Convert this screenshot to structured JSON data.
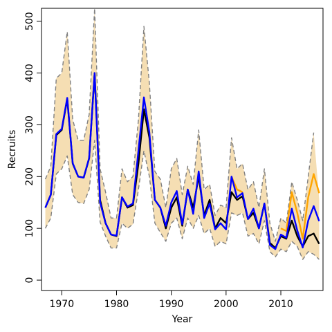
{
  "chart_data": {
    "type": "line",
    "title": "",
    "xlabel": "Year",
    "ylabel": "Recruits",
    "xlim": [
      1966.3,
      2017.7
    ],
    "ylim": [
      -20,
      525
    ],
    "xticks": [
      1970,
      1980,
      1990,
      2000,
      2010
    ],
    "yticks": [
      0,
      100,
      200,
      300,
      400,
      500
    ],
    "grid": false,
    "legend": "none",
    "x": [
      1967,
      1968,
      1969,
      1970,
      1971,
      1972,
      1973,
      1974,
      1975,
      1976,
      1977,
      1978,
      1979,
      1980,
      1981,
      1982,
      1983,
      1984,
      1985,
      1986,
      1987,
      1988,
      1989,
      1990,
      1991,
      1992,
      1993,
      1994,
      1995,
      1996,
      1997,
      1998,
      1999,
      2000,
      2001,
      2002,
      2003,
      2004,
      2005,
      2006,
      2007,
      2008,
      2009,
      2010,
      2011,
      2012,
      2013,
      2014,
      2015,
      2016,
      2017
    ],
    "band_color": "#f5deb3",
    "series": [
      {
        "role": "interval-upper",
        "color": "#808080",
        "values": [
          195,
          220,
          390,
          400,
          480,
          310,
          270,
          270,
          320,
          525,
          215,
          170,
          120,
          120,
          215,
          190,
          200,
          310,
          490,
          380,
          210,
          195,
          140,
          215,
          235,
          165,
          220,
          185,
          290,
          175,
          185,
          125,
          145,
          140,
          275,
          215,
          225,
          175,
          190,
          140,
          215,
          110,
          75,
          120,
          110,
          190,
          155,
          115,
          200,
          285,
          null
        ]
      },
      {
        "role": "interval-lower",
        "color": "#808080",
        "values": [
          100,
          120,
          205,
          215,
          240,
          165,
          150,
          148,
          175,
          270,
          112,
          85,
          62,
          62,
          110,
          100,
          108,
          175,
          250,
          200,
          110,
          92,
          75,
          110,
          120,
          80,
          120,
          100,
          125,
          90,
          100,
          65,
          75,
          70,
          130,
          125,
          130,
          85,
          90,
          70,
          115,
          55,
          45,
          60,
          55,
          75,
          65,
          40,
          55,
          50,
          40
        ]
      },
      {
        "color": "#000000",
        "values": [
          140,
          165,
          280,
          290,
          350,
          225,
          200,
          198,
          235,
          400,
          155,
          110,
          88,
          85,
          160,
          140,
          145,
          225,
          330,
          275,
          155,
          140,
          100,
          140,
          160,
          105,
          175,
          140,
          200,
          125,
          155,
          100,
          120,
          110,
          170,
          155,
          162,
          118,
          130,
          100,
          148,
          72,
          62,
          85,
          80,
          115,
          85,
          65,
          85,
          90,
          70
        ]
      },
      {
        "color": "#ffa500",
        "values": [
          null,
          null,
          null,
          null,
          null,
          null,
          null,
          null,
          null,
          null,
          null,
          null,
          null,
          null,
          null,
          null,
          null,
          null,
          null,
          null,
          null,
          null,
          null,
          null,
          null,
          null,
          null,
          null,
          null,
          null,
          null,
          null,
          null,
          null,
          200,
          175,
          170,
          null,
          null,
          null,
          null,
          null,
          null,
          100,
          95,
          170,
          130,
          80,
          160,
          205,
          168
        ]
      },
      {
        "color": "#0000ff",
        "values": [
          140,
          165,
          282,
          292,
          352,
          226,
          200,
          198,
          236,
          400,
          150,
          110,
          88,
          86,
          160,
          142,
          148,
          250,
          353,
          285,
          155,
          140,
          105,
          150,
          172,
          108,
          175,
          128,
          210,
          120,
          148,
          98,
          110,
          98,
          200,
          160,
          168,
          118,
          138,
          100,
          148,
          68,
          60,
          88,
          82,
          138,
          96,
          63,
          115,
          143,
          114
        ]
      }
    ]
  }
}
